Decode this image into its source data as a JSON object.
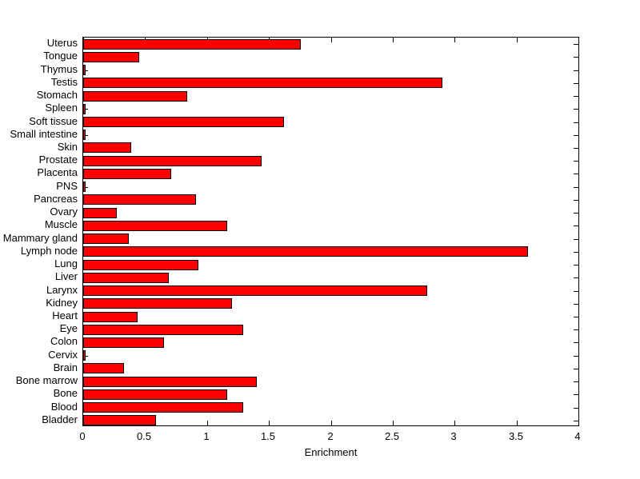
{
  "figure": {
    "background": "#ffffff",
    "border_color": "#000000",
    "text_color": "#000000"
  },
  "chart_data": {
    "type": "bar",
    "orientation": "horizontal",
    "title": "",
    "xlabel": "Enrichment",
    "ylabel": "",
    "xlim": [
      0,
      4
    ],
    "xticks": [
      "0",
      "0.5",
      "1",
      "1.5",
      "2",
      "2.5",
      "3",
      "3.5",
      "4"
    ],
    "xtick_values": [
      0,
      0.5,
      1,
      1.5,
      2,
      2.5,
      3,
      3.5,
      4
    ],
    "grid": "off",
    "legend": "none",
    "bar_color": "#ff0000",
    "bar_edge_color": "#000000",
    "category_order": "top-to-bottom",
    "categories": [
      "Uterus",
      "Tongue",
      "Thymus",
      "Testis",
      "Stomach",
      "Spleen",
      "Soft tissue",
      "Small intestine",
      "Skin",
      "Prostate",
      "Placenta",
      "PNS",
      "Pancreas",
      "Ovary",
      "Muscle",
      "Mammary gland",
      "Lymph node",
      "Lung",
      "Liver",
      "Larynx",
      "Kidney",
      "Heart",
      "Eye",
      "Colon",
      "Cervix",
      "Brain",
      "Bone marrow",
      "Bone",
      "Blood",
      "Bladder"
    ],
    "values": [
      1.76,
      0.45,
      0.02,
      2.9,
      0.84,
      0.02,
      1.62,
      0.02,
      0.39,
      1.44,
      0.71,
      0.02,
      0.91,
      0.27,
      1.16,
      0.37,
      3.59,
      0.93,
      0.69,
      2.78,
      1.2,
      0.44,
      1.29,
      0.65,
      0.02,
      0.33,
      1.4,
      1.16,
      1.29,
      0.59
    ]
  }
}
